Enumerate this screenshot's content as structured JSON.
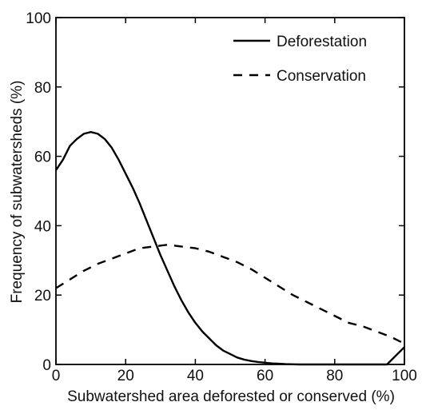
{
  "chart_data": {
    "type": "line",
    "title": "",
    "xlabel": "Subwatershed area deforested or conserved (%)",
    "ylabel": "Frequency of subwatersheds (%)",
    "xlim": [
      0,
      100
    ],
    "ylim": [
      0,
      100
    ],
    "x_ticks": [
      "0",
      "20",
      "40",
      "60",
      "80",
      "100"
    ],
    "y_ticks": [
      "0",
      "20",
      "40",
      "60",
      "80",
      "100"
    ],
    "grid": false,
    "legend_position": "top-right",
    "series": [
      {
        "name": "Deforestation",
        "style": "solid",
        "color": "#000000",
        "x": [
          0,
          2,
          4,
          6,
          8,
          10,
          12,
          14,
          16,
          18,
          20,
          22,
          24,
          26,
          28,
          30,
          32,
          34,
          36,
          38,
          40,
          42,
          44,
          46,
          48,
          50,
          52,
          54,
          56,
          58,
          60,
          62,
          64,
          66,
          68,
          70,
          72,
          74,
          76,
          80,
          85,
          90,
          95,
          100
        ],
        "y": [
          56,
          59,
          63,
          65,
          66.5,
          67,
          66.5,
          65,
          62.5,
          59,
          55,
          51,
          46.5,
          41.5,
          36.5,
          31.5,
          27,
          22.5,
          18.5,
          15,
          12,
          9.5,
          7.5,
          5.5,
          4,
          3,
          2,
          1.4,
          1,
          0.7,
          0.5,
          0.3,
          0.2,
          0.1,
          0.05,
          0,
          0,
          0,
          0,
          0,
          0,
          0,
          0,
          5
        ]
      },
      {
        "name": "Conservation",
        "style": "dashed",
        "color": "#000000",
        "x": [
          0,
          4,
          8,
          12,
          16,
          20,
          24,
          28,
          32,
          36,
          40,
          44,
          48,
          52,
          56,
          60,
          64,
          68,
          72,
          76,
          80,
          84,
          88,
          92,
          96,
          100
        ],
        "y": [
          22,
          24.5,
          27,
          29,
          30.5,
          32,
          33.5,
          34,
          34.5,
          34,
          33.5,
          32.5,
          31,
          29.5,
          27.5,
          25,
          22.5,
          20,
          18,
          16,
          14,
          12,
          11,
          9.5,
          8,
          6
        ]
      }
    ]
  }
}
